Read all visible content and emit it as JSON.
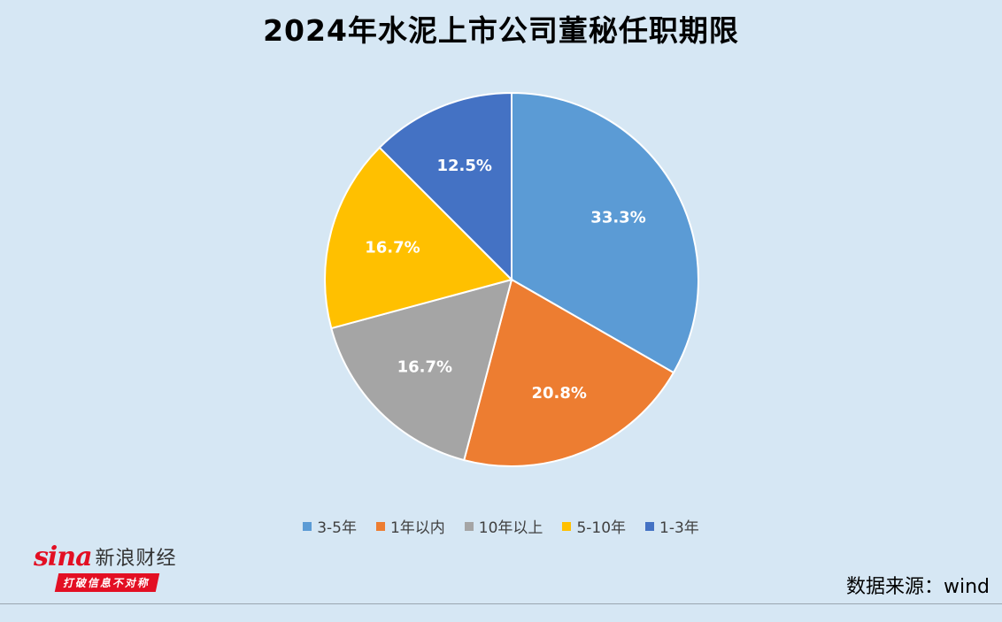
{
  "chart_data": {
    "type": "pie",
    "title": "2024年水泥上市公司董秘任职期限",
    "series": [
      {
        "label": "3-5年",
        "value": 33.3,
        "display": "33.3%",
        "color": "#5b9bd5"
      },
      {
        "label": "1年以内",
        "value": 20.8,
        "display": "20.8%",
        "color": "#ed7d31"
      },
      {
        "label": "10年以上",
        "value": 16.7,
        "display": "16.7%",
        "color": "#a5a5a5"
      },
      {
        "label": "5-10年",
        "value": 16.7,
        "display": "16.7%",
        "color": "#ffc000"
      },
      {
        "label": "1-3年",
        "value": 12.5,
        "display": "12.5%",
        "color": "#4472c4"
      }
    ],
    "legend_position": "bottom",
    "start_angle": "12 o'clock",
    "direction": "clockwise"
  },
  "branding": {
    "logo_word": "sina",
    "logo_name": "新浪财经",
    "slogan": "打破信息不对称",
    "brand_color": "#e30f23"
  },
  "source": "数据来源：wind",
  "background_color": "#d6e7f4"
}
